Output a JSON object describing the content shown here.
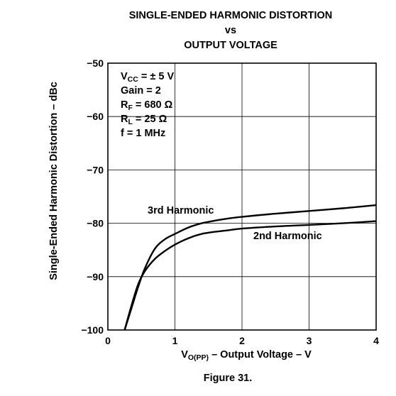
{
  "header": {
    "title_line1": "SINGLE-ENDED HARMONIC DISTORTION",
    "title_line2": "vs",
    "title_line3": "OUTPUT VOLTAGE"
  },
  "caption": "Figure 31.",
  "conditions": {
    "vcc": {
      "prefix": "V",
      "sub": "CC",
      "rest": " = ± 5 V"
    },
    "gain": "Gain = 2",
    "rf": {
      "prefix": "R",
      "sub": "F",
      "rest": " = 680 Ω"
    },
    "rl": {
      "prefix": "R",
      "sub": "L",
      "rest": " = 25 Ω"
    },
    "freq": "f = 1 MHz"
  },
  "axes": {
    "ylabel": "Single-Ended Harmonic Distortion – dBc",
    "xlabel": {
      "prefix": "V",
      "sub": "O(PP)",
      "rest": " – Output Voltage – V"
    }
  },
  "chart_data": {
    "type": "line",
    "xlim": [
      0,
      4
    ],
    "ylim": [
      -100,
      -50
    ],
    "xticks": [
      0,
      1,
      2,
      3,
      4
    ],
    "xtick_labels": [
      "0",
      "1",
      "2",
      "3",
      "4"
    ],
    "yticks": [
      -100,
      -90,
      -80,
      -70,
      -60,
      -50
    ],
    "ytick_labels": [
      "−100",
      "−90",
      "−80",
      "−70",
      "−60",
      "−50"
    ],
    "grid": true,
    "series": [
      {
        "name": "3rd Harmonic",
        "x": [
          0.25,
          0.35,
          0.45,
          0.55,
          0.7,
          0.85,
          1.0,
          1.2,
          1.4,
          1.6,
          1.8,
          2.0,
          2.5,
          3.0,
          3.5,
          4.0
        ],
        "y": [
          -100,
          -96,
          -92,
          -88.5,
          -84.8,
          -83,
          -82,
          -80.8,
          -80,
          -79.5,
          -79.1,
          -78.8,
          -78.2,
          -77.7,
          -77.2,
          -76.6
        ]
      },
      {
        "name": "2nd Harmonic",
        "x": [
          0.25,
          0.35,
          0.45,
          0.55,
          0.7,
          0.85,
          1.0,
          1.2,
          1.4,
          1.6,
          1.8,
          2.0,
          2.5,
          3.0,
          3.5,
          4.0
        ],
        "y": [
          -100,
          -95.5,
          -91.5,
          -89,
          -86.7,
          -85.2,
          -84,
          -82.8,
          -82,
          -81.6,
          -81.3,
          -81.0,
          -80.6,
          -80.3,
          -80.0,
          -79.6
        ]
      }
    ]
  }
}
